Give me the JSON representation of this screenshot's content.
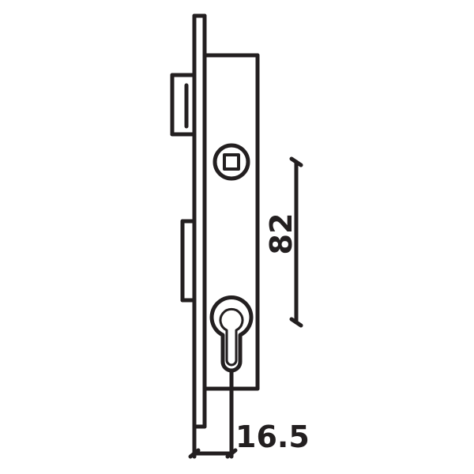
{
  "drawing": {
    "stroke_color": "#231f20",
    "background": "#ffffff",
    "parts": [
      "faceplate",
      "lock-case",
      "latch-bolt",
      "dead-bolt",
      "spindle-hub",
      "cylinder-keyhole"
    ]
  },
  "dimensions": {
    "backset": "16.5",
    "center_distance": "82"
  }
}
